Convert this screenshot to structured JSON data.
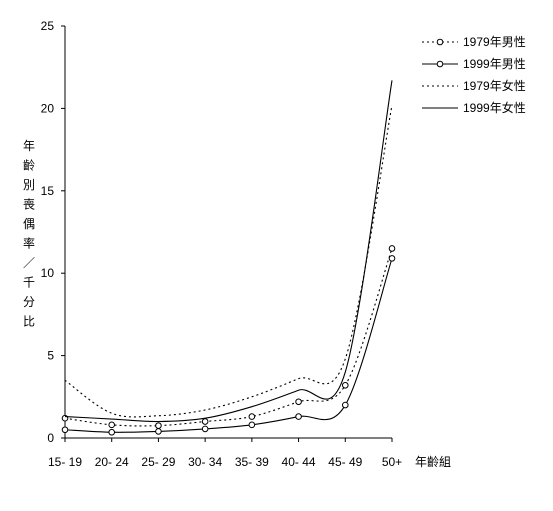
{
  "chart_data": {
    "type": "line",
    "categories": [
      "15- 19",
      "20- 24",
      "25- 29",
      "30- 34",
      "35- 39",
      "40- 44",
      "45- 49",
      "50+"
    ],
    "xlabel": "年齡組",
    "ylabel": "年齡別喪偶率／千分比",
    "ylim": [
      0,
      25
    ],
    "yticks": [
      0,
      5,
      10,
      15,
      20,
      25
    ],
    "grid": false,
    "legend_position": "top-right",
    "series": [
      {
        "name": "1979年男性",
        "style": "dotted-markers",
        "color": "#000000",
        "values": [
          1.2,
          0.8,
          0.75,
          1.0,
          1.3,
          2.2,
          3.2,
          11.5
        ]
      },
      {
        "name": "1999年男性",
        "style": "solid-markers",
        "color": "#000000",
        "values": [
          0.5,
          0.35,
          0.4,
          0.55,
          0.8,
          1.3,
          2.0,
          10.9
        ]
      },
      {
        "name": "1979年女性",
        "style": "dotted",
        "color": "#000000",
        "values": [
          3.5,
          1.5,
          1.35,
          1.7,
          2.5,
          3.6,
          4.8,
          20.2
        ]
      },
      {
        "name": "1999年女性",
        "style": "solid",
        "color": "#000000",
        "values": [
          1.3,
          1.15,
          1.0,
          1.2,
          1.9,
          2.9,
          4.0,
          21.7
        ]
      }
    ]
  }
}
